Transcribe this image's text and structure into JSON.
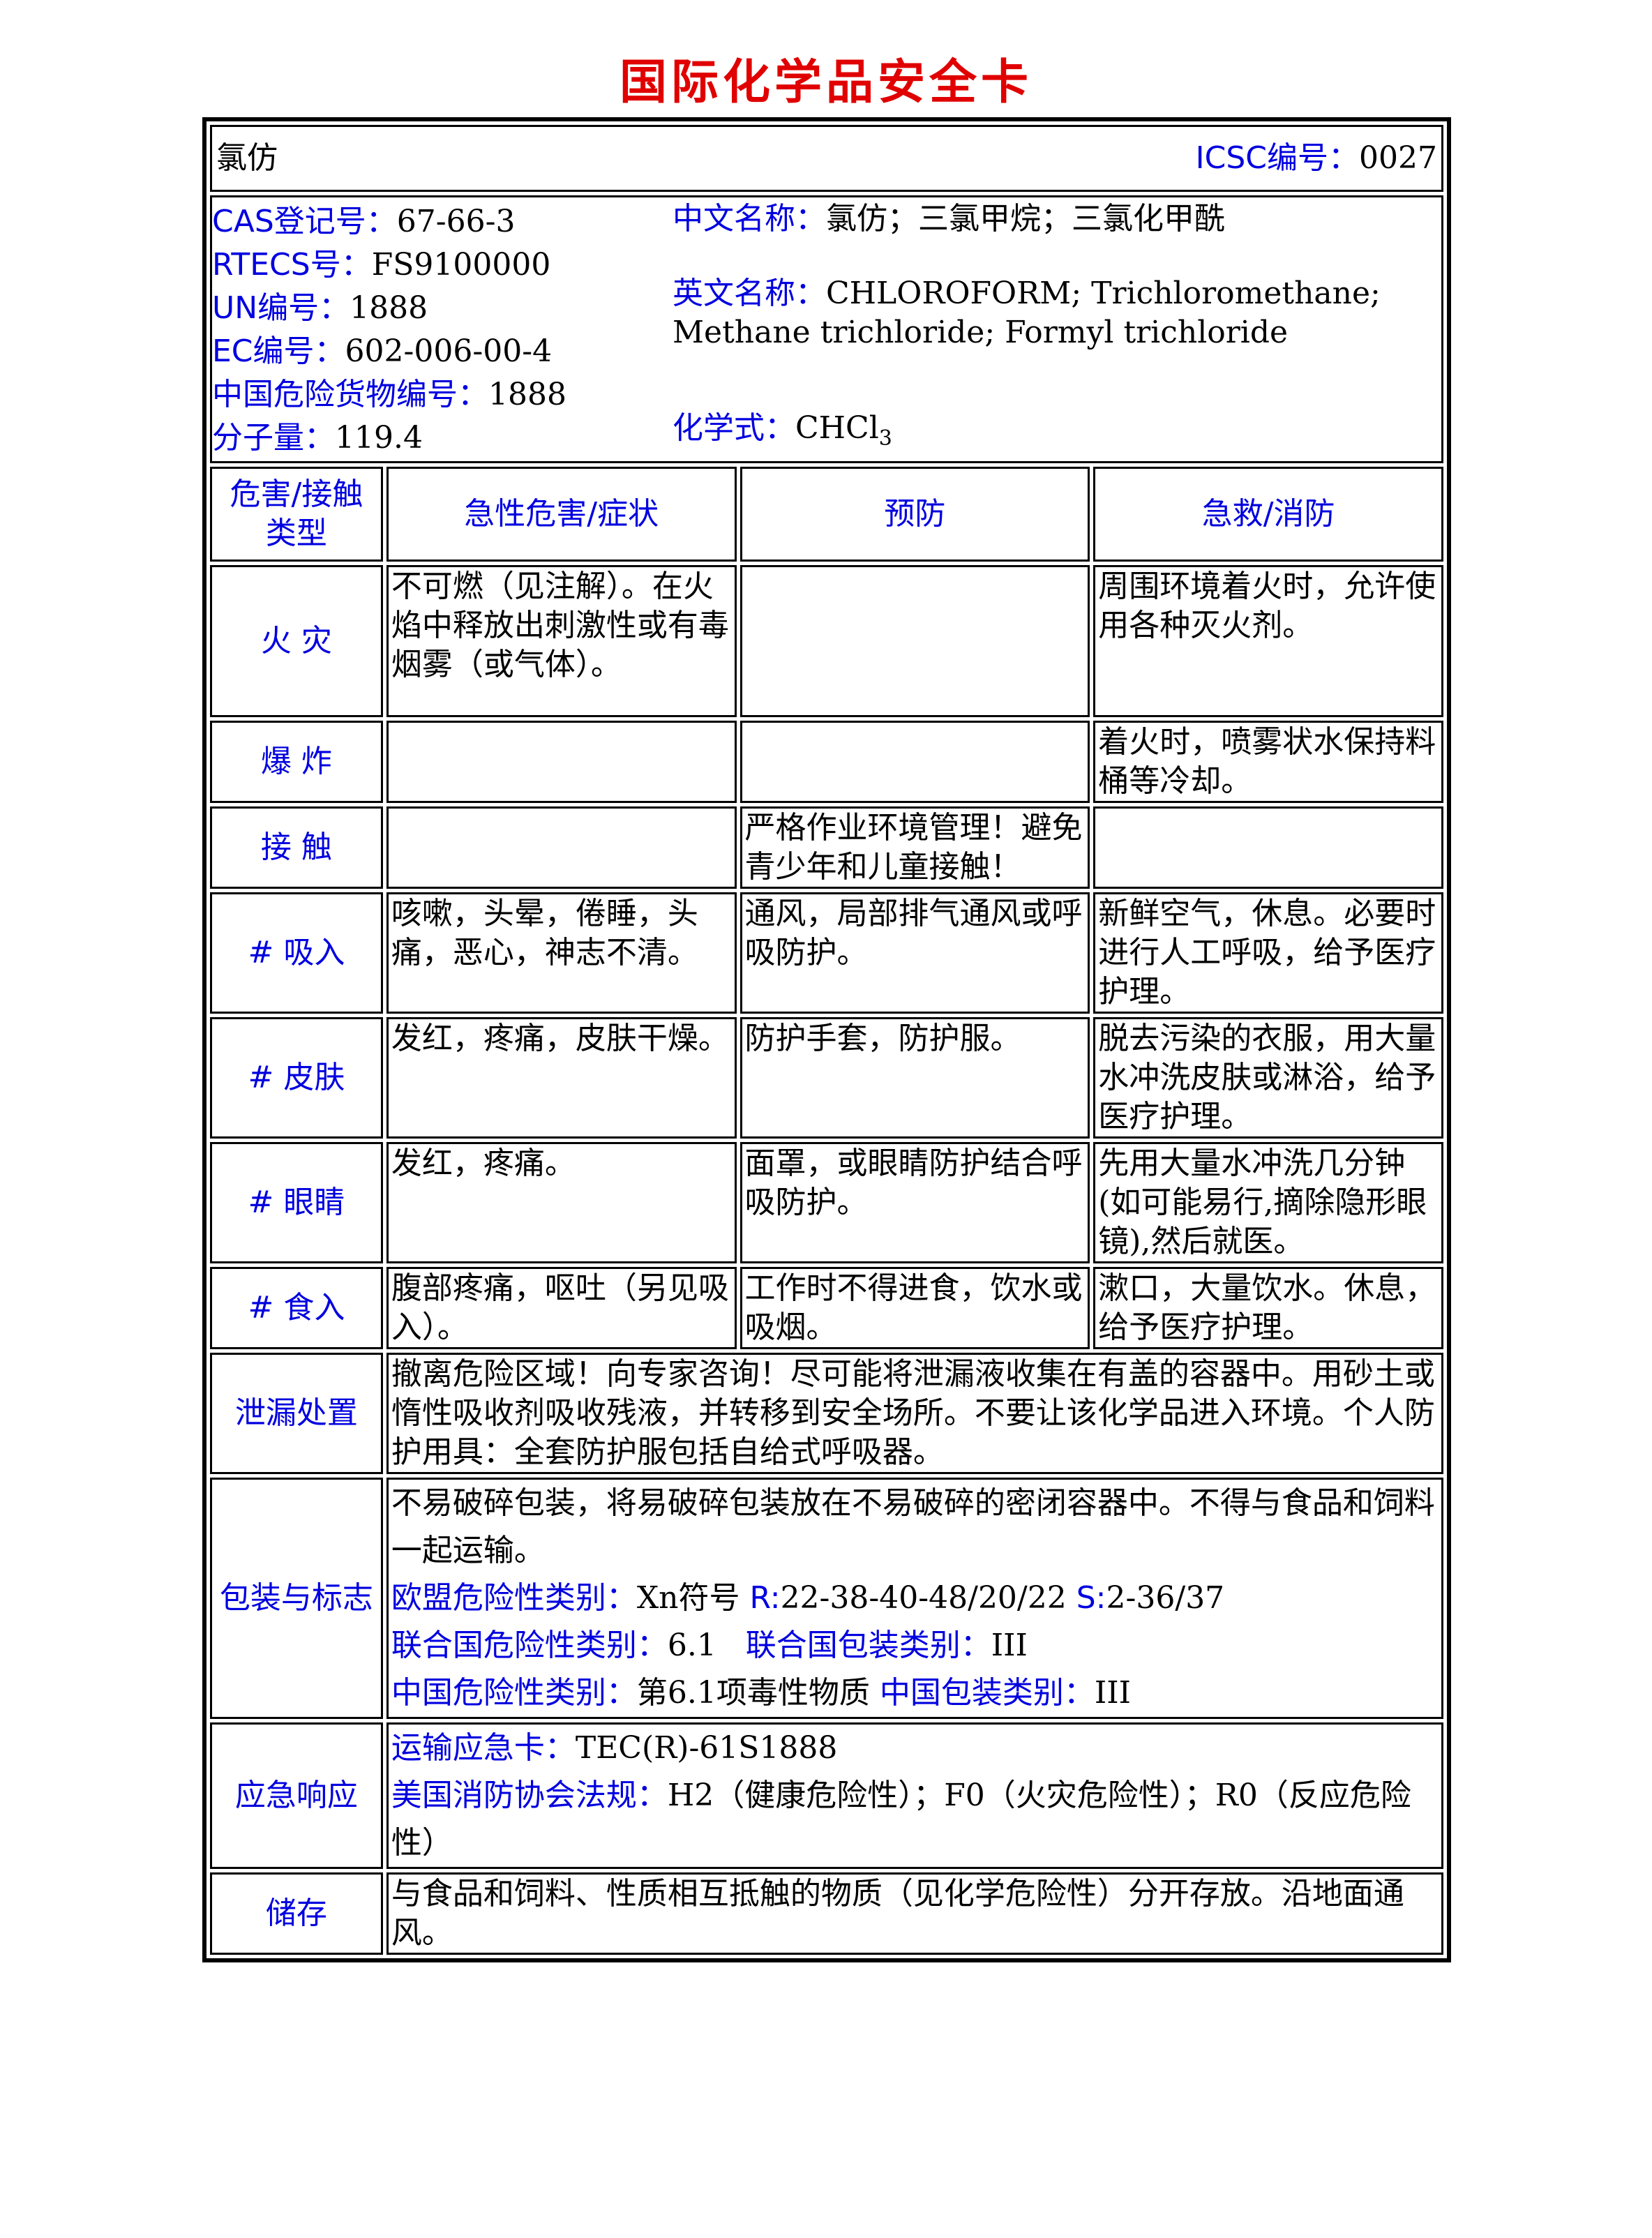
{
  "title": "国际化学品安全卡",
  "header": {
    "name": "氯仿",
    "icsc_label": "ICSC编号：",
    "icsc_value": "0027"
  },
  "info": {
    "cas_label": "CAS登记号：",
    "cas": "67-66-3",
    "rtecs_label": "RTECS号：",
    "rtecs": "FS9100000",
    "un_label": "UN编号：",
    "un": "1888",
    "ec_label": "EC编号：",
    "ec": "602-006-00-4",
    "cn_dg_label": "中国危险货物编号：",
    "cn_dg": "1888",
    "mw_label": "分子量：",
    "mw": "119.4",
    "cn_name_label": "中文名称：",
    "cn_name": "氯仿；三氯甲烷；三氯化甲酰",
    "en_name_label": "英文名称：",
    "en_name": "CHLOROFORM; Trichloromethane; Methane trichloride; Formyl trichloride",
    "formula_label": "化学式：",
    "formula": "CHCl",
    "formula_sub": "3"
  },
  "hazard_table": {
    "columns": [
      "危害/接触类型",
      "急性危害/症状",
      "预防",
      "急救/消防"
    ],
    "rows": [
      {
        "type": "火 灾",
        "symptoms": "不可燃（见注解）。在火焰中释放出刺激性或有毒烟雾（或气体）。",
        "prevention": "",
        "first_aid": "周围环境着火时，允许使用各种灭火剂。"
      },
      {
        "type": "爆 炸",
        "symptoms": "",
        "prevention": "",
        "first_aid": "着火时，喷雾状水保持料桶等冷却。"
      },
      {
        "type": "接 触",
        "symptoms": "",
        "prevention": "严格作业环境管理！避免青少年和儿童接触！",
        "first_aid": ""
      },
      {
        "type": "# 吸入",
        "symptoms": "咳嗽，头晕，倦睡，头痛，恶心，神志不清。",
        "prevention": "通风，局部排气通风或呼吸防护。",
        "first_aid": "新鲜空气，休息。必要时进行人工呼吸，给予医疗护理。"
      },
      {
        "type": "# 皮肤",
        "symptoms": "发红，疼痛，皮肤干燥。",
        "prevention": "防护手套，防护服。",
        "first_aid": "脱去污染的衣服，用大量水冲洗皮肤或淋浴，给予医疗护理。"
      },
      {
        "type": "# 眼睛",
        "symptoms": "发红，疼痛。",
        "prevention": "面罩，或眼睛防护结合呼吸防护。",
        "first_aid": "先用大量水冲洗几分钟(如可能易行,摘除隐形眼镜),然后就医。"
      },
      {
        "type": "# 食入",
        "symptoms": "腹部疼痛，呕吐（另见吸入）。",
        "prevention": "工作时不得进食，饮水或吸烟。",
        "first_aid": "漱口，大量饮水。休息，给予医疗护理。"
      }
    ]
  },
  "leak": {
    "label": "泄漏处置",
    "text": "撤离危险区域！向专家咨询！尽可能将泄漏液收集在有盖的容器中。用砂土或惰性吸收剂吸收残液，并转移到安全场所。不要让该化学品进入环境。个人防护用具：全套防护服包括自给式呼吸器。"
  },
  "packaging": {
    "label": "包装与标志",
    "text": "不易破碎包装，将易破碎包装放在不易破碎的密闭容器中。不得与食品和饲料一起运输。",
    "eu_label": "欧盟危险性类别：",
    "eu_value": "Xn符号",
    "r_label": "R:",
    "r_value": "22-38-40-48/20/22",
    "s_label": "S:",
    "s_value": "2-36/37",
    "un_class_label": "联合国危险性类别：",
    "un_class": "6.1",
    "un_pack_label": "联合国包装类别：",
    "un_pack": "III",
    "cn_class_label": "中国危险性类别：",
    "cn_class": "第6.1项毒性物质",
    "cn_pack_label": "中国包装类别：",
    "cn_pack": "III"
  },
  "emergency": {
    "label": "应急响应",
    "card_label": "运输应急卡：",
    "card": "TEC(R)-61S1888",
    "nfpa_label": "美国消防协会法规：",
    "nfpa": "H2（健康危险性）；F0（火灾危险性）；R0（反应危险性）"
  },
  "storage": {
    "label": "储存",
    "text": "与食品和饲料、性质相互抵触的物质（见化学危险性）分开存放。沿地面通风。"
  },
  "colors": {
    "title": "#e00000",
    "label": "#0000e0"
  }
}
